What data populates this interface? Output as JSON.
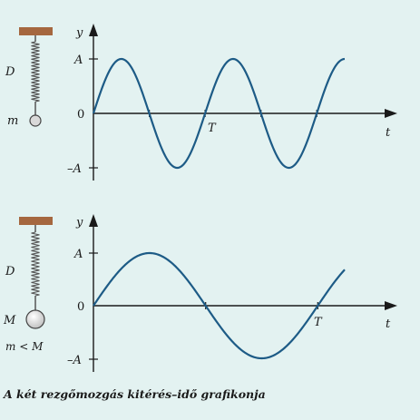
{
  "caption": "A két rezgőmozgás kitérés–idő grafikonja",
  "colors": {
    "background": "#e3f2f1",
    "curve": "#1d5b86",
    "axis": "#1a1a1a",
    "ceiling": "#a5673f",
    "spring": "#555555",
    "ball": "#d9d9d9"
  },
  "diagrams": [
    {
      "spring_label": "D",
      "mass_label": "m",
      "extra_label": "",
      "axis_y_label": "y",
      "axis_x_label": "t",
      "tick_pos_label": "A",
      "tick_zero_label": "0",
      "tick_neg_label": "–A",
      "period_label": "T",
      "periods_shown": 2.25
    },
    {
      "spring_label": "D",
      "mass_label": "M",
      "extra_label": "m < M",
      "axis_y_label": "y",
      "axis_x_label": "t",
      "tick_pos_label": "A",
      "tick_zero_label": "0",
      "tick_neg_label": "–A",
      "period_label": "T",
      "periods_shown": 1.12
    }
  ]
}
